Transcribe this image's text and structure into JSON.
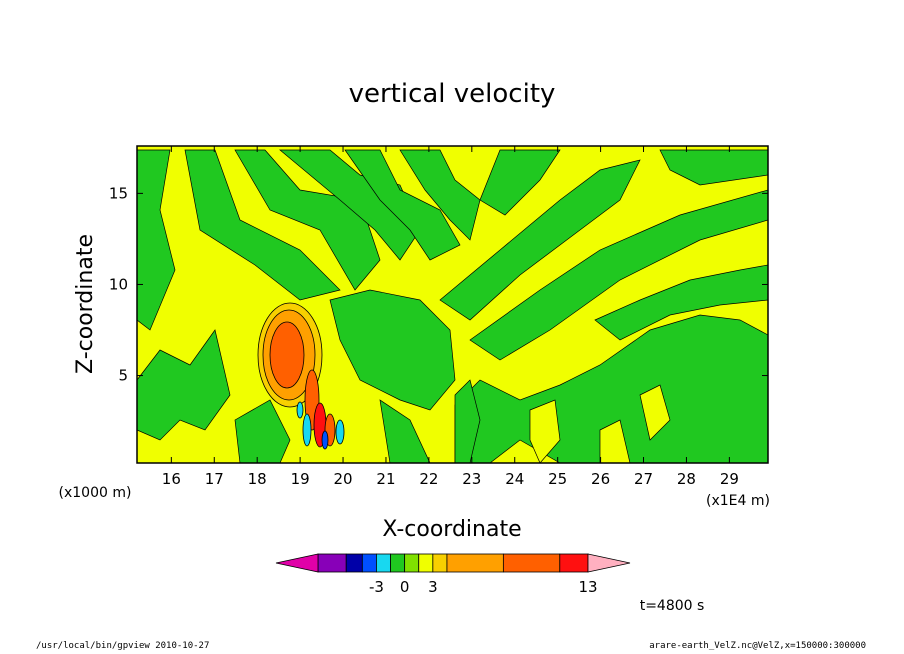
{
  "chart_data": {
    "type": "heatmap",
    "title": "vertical velocity",
    "xlabel": "X-coordinate",
    "ylabel": "Z-coordinate",
    "x_unit_label": "(x1E4 m)",
    "y_unit_label": "(x1000 m)",
    "xlim": [
      15.2,
      29.9
    ],
    "ylim": [
      0.2,
      17.6
    ],
    "x_ticks": [
      "16",
      "17",
      "18",
      "19",
      "20",
      "21",
      "22",
      "23",
      "24",
      "25",
      "26",
      "27",
      "28",
      "29"
    ],
    "y_ticks": [
      "5",
      "10",
      "15"
    ],
    "colorbar": {
      "colors": [
        "#e000a8",
        "#8800b8",
        "#0000a8",
        "#0050ff",
        "#18d8f0",
        "#20c820",
        "#80e000",
        "#f0ff00",
        "#f8d000",
        "#ffa000",
        "#ff6000",
        "#ff1010",
        "#ff8080",
        "#ffb0c0"
      ],
      "tick_labels": [
        "-3",
        "0",
        "3",
        "13"
      ]
    },
    "time_label": "t=4800 s",
    "features": [
      {
        "x": 18.9,
        "z": 6.0,
        "max": 13,
        "kind": "updraft"
      },
      {
        "x": 19.3,
        "z": 2.2,
        "max": 13,
        "kind": "updraft"
      },
      {
        "x": 19.1,
        "z": 2.5,
        "min": -3,
        "kind": "downdraft"
      }
    ]
  },
  "footer": {
    "left": "/usr/local/bin/gpview  2010-10-27",
    "right": "arare-earth_VelZ.nc@VelZ,x=150000:300000"
  }
}
